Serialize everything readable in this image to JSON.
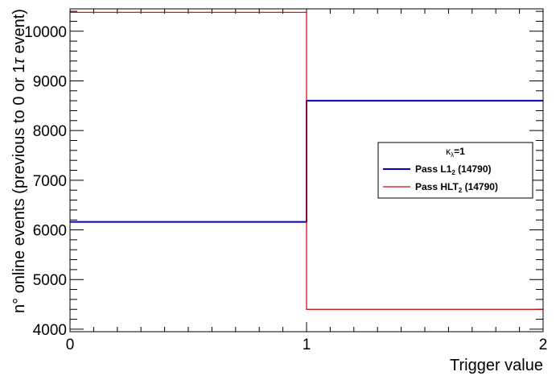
{
  "chart_data": {
    "type": "line",
    "xlabel": "Trigger value",
    "ylabel": "n° online events (previous to 0 or 1",
    "ylabel_tau": "τ",
    "ylabel_end": " event)",
    "xlim": [
      0,
      2
    ],
    "ylim": [
      3950,
      10450
    ],
    "x_ticks": [
      0,
      1,
      2
    ],
    "y_ticks": [
      4000,
      5000,
      6000,
      7000,
      8000,
      9000,
      10000
    ],
    "legend": {
      "placement": "right",
      "header": "κλ=1",
      "header_kappa": "κ",
      "header_lambda": "λ",
      "header_rest": "=1"
    },
    "series": [
      {
        "name": "Pass L12 (14790)",
        "label_main": "Pass L1",
        "label_sub": "2",
        "label_rest": " (14790)",
        "color": "#0000cc",
        "bins": [
          0,
          1,
          2
        ],
        "values": [
          6160,
          8600
        ]
      },
      {
        "name": "Pass HLT2 (14790)",
        "label_main": "Pass HLT",
        "label_sub": "2",
        "label_rest": " (14790)",
        "color": "#cc0000",
        "bins": [
          0,
          1,
          2
        ],
        "values": [
          10380,
          4400
        ]
      }
    ]
  }
}
